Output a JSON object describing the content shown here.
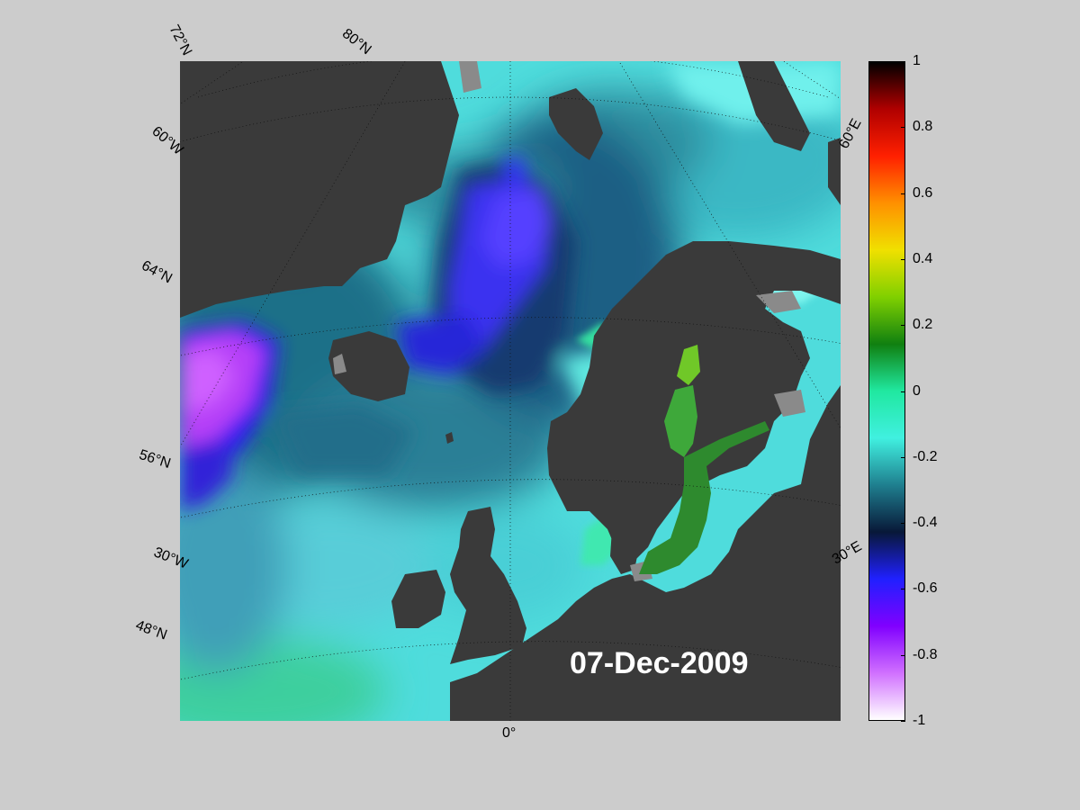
{
  "date_label": "07-Dec-2009",
  "graticule_labels": {
    "lat_72": "72°N",
    "lat_80": "80°N",
    "lon_60w": "60°W",
    "lat_64": "64°N",
    "lat_56": "56°N",
    "lon_30w": "30°W",
    "lat_48": "48°N",
    "lon_0": "0°",
    "lon_30e": "30°E",
    "lon_60e": "60°E"
  },
  "colorbar": {
    "min": -1,
    "max": 1,
    "ticks": [
      "1",
      "0.8",
      "0.6",
      "0.4",
      "0.2",
      "0",
      "-0.2",
      "-0.4",
      "-0.6",
      "-0.8",
      "-1"
    ],
    "tick_values": [
      1,
      0.8,
      0.6,
      0.4,
      0.2,
      0,
      -0.2,
      -0.4,
      -0.6,
      -0.8,
      -1
    ],
    "colors": [
      "#000000",
      "#b00000",
      "#ff2000",
      "#ff9000",
      "#f0e000",
      "#80d000",
      "#108010",
      "#20e8a0",
      "#40f0e0",
      "#1f7f8f",
      "#081838",
      "#2020ff",
      "#8000ff",
      "#d070ff",
      "#ffffff"
    ]
  },
  "colors": {
    "land": "#3a3a3a",
    "figure_bg": "#cccccc",
    "cyan_sea": "#5ee8e4",
    "teal_sea": "#2e8f9a",
    "deep_blue": "#2a2aff",
    "purple": "#b040ff",
    "baltic_green": "#2e8a2e"
  }
}
